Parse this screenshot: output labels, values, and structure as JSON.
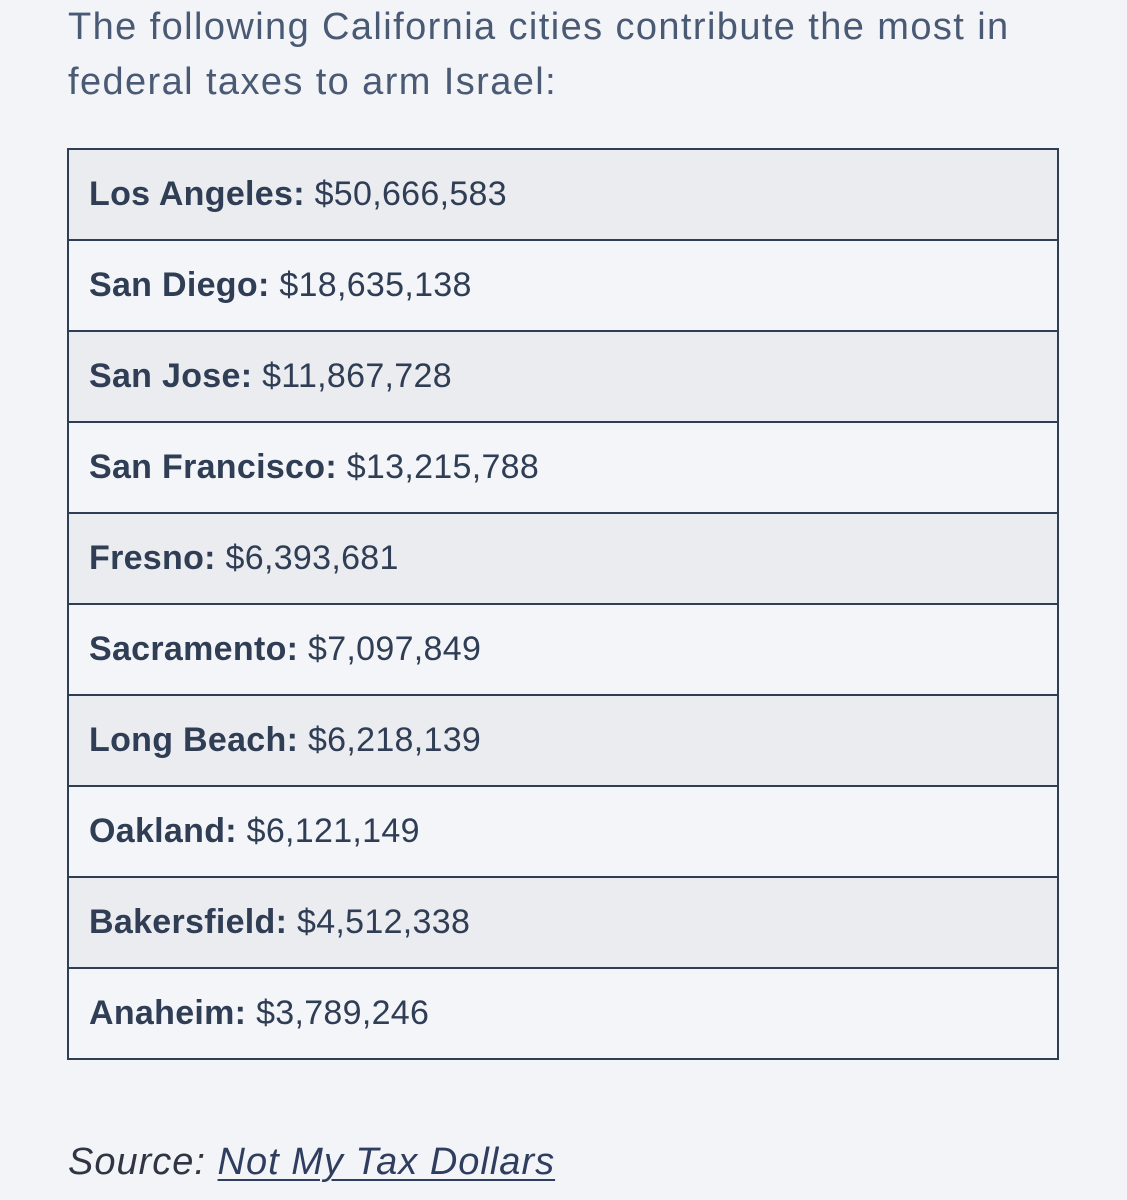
{
  "intro_text": "The following California cities contribute the most in federal taxes to arm Israel:",
  "table": {
    "rows": [
      {
        "city": "Los Angeles:",
        "amount": "$50,666,583"
      },
      {
        "city": "San Diego:",
        "amount": "$18,635,138"
      },
      {
        "city": "San Jose:",
        "amount": "$11,867,728"
      },
      {
        "city": "San Francisco:",
        "amount": "$13,215,788"
      },
      {
        "city": "Fresno:",
        "amount": "$6,393,681"
      },
      {
        "city": "Sacramento:",
        "amount": "$7,097,849"
      },
      {
        "city": "Long Beach:",
        "amount": "$6,218,139"
      },
      {
        "city": "Oakland:",
        "amount": "$6,121,149"
      },
      {
        "city": "Bakersfield:",
        "amount": "$4,512,338"
      },
      {
        "city": "Anaheim:",
        "amount": "$3,789,246"
      }
    ]
  },
  "source": {
    "label": "Source:",
    "link_text": "Not My Tax Dollars"
  },
  "colors": {
    "text": "#2f3d55",
    "background": "#f2f4f8",
    "row_shaded": "#eaecf0",
    "row_plain": "#f4f5f8"
  }
}
